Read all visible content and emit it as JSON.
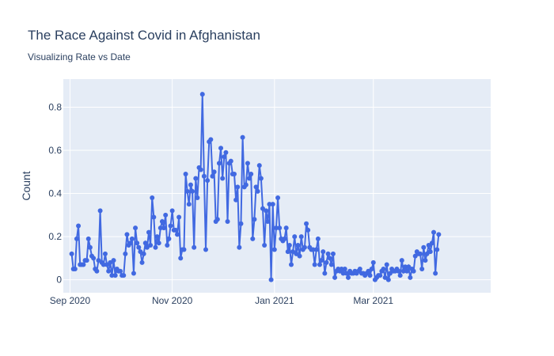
{
  "chart_data": {
    "type": "line",
    "title": "The Race Against Covid in Afghanistan",
    "subtitle": "Visualizing Rate vs Date",
    "xlabel": "",
    "ylabel": "Count",
    "x_range": [
      "2020-08-28",
      "2021-05-10"
    ],
    "ylim": [
      -0.06,
      0.93
    ],
    "y_ticks": [
      0,
      0.2,
      0.4,
      0.6,
      0.8
    ],
    "x_ticks": [
      {
        "date": "2020-09-01",
        "label": "Sep 2020"
      },
      {
        "date": "2020-11-01",
        "label": "Nov 2020"
      },
      {
        "date": "2021-01-01",
        "label": "Jan 2021"
      },
      {
        "date": "2021-03-01",
        "label": "Mar 2021"
      }
    ],
    "grid": true,
    "colors": {
      "line": "#4169e1",
      "plot_bg": "#e5ecf6",
      "grid": "#ffffff",
      "text": "#2a3f5f"
    },
    "series": [
      {
        "x_start": "2020-09-02",
        "step_days": 1,
        "values": [
          0.12,
          0.05,
          0.05,
          0.19,
          0.25,
          0.07,
          0.07,
          0.07,
          0.09,
          0.09,
          0.19,
          0.15,
          0.11,
          0.1,
          0.05,
          0.04,
          0.09,
          0.32,
          0.08,
          0.07,
          0.12,
          0.07,
          0.04,
          0.08,
          0.02,
          0.09,
          0.02,
          0.05,
          0.04,
          0.04,
          0.02,
          0.02,
          0.12,
          0.21,
          0.16,
          0.17,
          0.19,
          0.03,
          0.24,
          0.17,
          0.15,
          0.13,
          0.08,
          0.12,
          0.17,
          0.15,
          0.22,
          0.16,
          0.38,
          0.29,
          0.15,
          0.2,
          0.17,
          0.24,
          0.27,
          0.24,
          0.3,
          0.16,
          0.19,
          0.25,
          0.32,
          0.23,
          0.23,
          0.21,
          0.29,
          0.1,
          0.14,
          0.14,
          0.49,
          0.41,
          0.35,
          0.44,
          0.41,
          0.15,
          0.47,
          0.38,
          0.52,
          0.51,
          0.86,
          0.48,
          0.14,
          0.46,
          0.64,
          0.65,
          0.48,
          0.5,
          0.27,
          0.28,
          0.54,
          0.61,
          0.47,
          0.57,
          0.59,
          0.27,
          0.54,
          0.55,
          0.49,
          0.49,
          0.37,
          0.43,
          0.15,
          0.26,
          0.66,
          0.43,
          0.44,
          0.54,
          0.47,
          0.49,
          0.19,
          0.28,
          0.43,
          0.41,
          0.53,
          0.47,
          0.33,
          0.16,
          0.32,
          0.27,
          0.35,
          0.0,
          0.35,
          0.14,
          0.24,
          0.38,
          0.24,
          0.19,
          0.18,
          0.19,
          0.24,
          0.13,
          0.16,
          0.07,
          0.13,
          0.2,
          0.12,
          0.16,
          0.11,
          0.2,
          0.14,
          0.15,
          0.26,
          0.23,
          0.15,
          0.14,
          0.14,
          0.07,
          0.14,
          0.19,
          0.07,
          0.09,
          0.13,
          0.03,
          0.08,
          0.12,
          0.1,
          0.07,
          0.12,
          0.01,
          0.04,
          0.05,
          0.04,
          0.05,
          0.03,
          0.05,
          0.03,
          0.01,
          0.04,
          0.03,
          0.03,
          0.04,
          0.03,
          0.04,
          0.05,
          0.03,
          0.03,
          0.02,
          0.03,
          0.04,
          0.02,
          0.05,
          0.08,
          0.0,
          0.01,
          0.02,
          0.02,
          0.04,
          0.05,
          0.01,
          0.07,
          0.0,
          0.03,
          0.05,
          0.04,
          0.04,
          0.05,
          0.04,
          0.02,
          0.09,
          0.04,
          0.06,
          0.04,
          0.06,
          0.01,
          0.05,
          0.04,
          0.11,
          0.13,
          0.12,
          0.12,
          0.05,
          0.15,
          0.09,
          0.12,
          0.16,
          0.13,
          0.17,
          0.22,
          0.03,
          0.14,
          0.21
        ]
      }
    ]
  }
}
